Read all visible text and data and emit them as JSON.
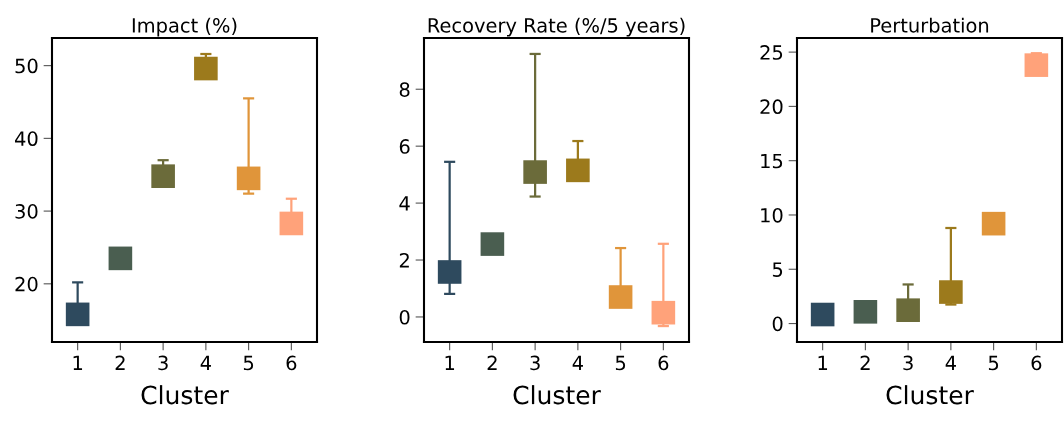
{
  "chart_data": [
    {
      "type": "scatter",
      "title": "Impact (%)",
      "xlabel": "Cluster",
      "categories": [
        "1",
        "2",
        "3",
        "4",
        "5",
        "6"
      ],
      "values": [
        15.8,
        23.5,
        34.8,
        49.6,
        34.5,
        28.3
      ],
      "colors": [
        "#2e4a5e",
        "#4a5e50",
        "#6b6b3a",
        "#9c7a1c",
        "#e0953a",
        "#ffa27a"
      ],
      "errors": [
        [
          15.8,
          20.2
        ],
        null,
        [
          34.8,
          37.0
        ],
        [
          49.6,
          51.6
        ],
        [
          32.4,
          45.5
        ],
        [
          28.3,
          31.7
        ]
      ],
      "ylim": [
        12,
        53.8
      ],
      "yticks": [
        20,
        30,
        40,
        50
      ],
      "marker": "square",
      "grid": false
    },
    {
      "type": "scatter",
      "title": "Recovery Rate (%/5 years)",
      "xlabel": "Cluster",
      "categories": [
        "1",
        "2",
        "3",
        "4",
        "5",
        "6"
      ],
      "values": [
        1.58,
        2.56,
        5.09,
        5.15,
        0.7,
        0.15
      ],
      "colors": [
        "#2e4a5e",
        "#4a5e50",
        "#6b6b3a",
        "#9c7a1c",
        "#e0953a",
        "#ffa27a"
      ],
      "errors": [
        [
          0.81,
          5.45
        ],
        null,
        [
          4.23,
          9.24
        ],
        [
          5.15,
          6.18
        ],
        [
          0.38,
          2.42
        ],
        [
          -0.32,
          2.57
        ]
      ],
      "ylim": [
        -0.88,
        9.8
      ],
      "yticks": [
        0,
        2,
        4,
        6,
        8
      ],
      "marker": "square",
      "grid": false
    },
    {
      "type": "scatter",
      "title": "Perturbation",
      "xlabel": "Cluster",
      "categories": [
        "1",
        "2",
        "3",
        "4",
        "5",
        "6"
      ],
      "values": [
        0.83,
        1.08,
        1.23,
        2.9,
        9.2,
        23.8
      ],
      "colors": [
        "#2e4a5e",
        "#4a5e50",
        "#6b6b3a",
        "#9c7a1c",
        "#e0953a",
        "#ffa27a"
      ],
      "errors": [
        null,
        null,
        [
          1.23,
          3.6
        ],
        [
          1.75,
          8.8
        ],
        null,
        [
          23.8,
          24.9
        ]
      ],
      "ylim": [
        -1.7,
        26.3
      ],
      "yticks": [
        0,
        5,
        10,
        15,
        20,
        25
      ],
      "marker": "square",
      "grid": false
    }
  ]
}
